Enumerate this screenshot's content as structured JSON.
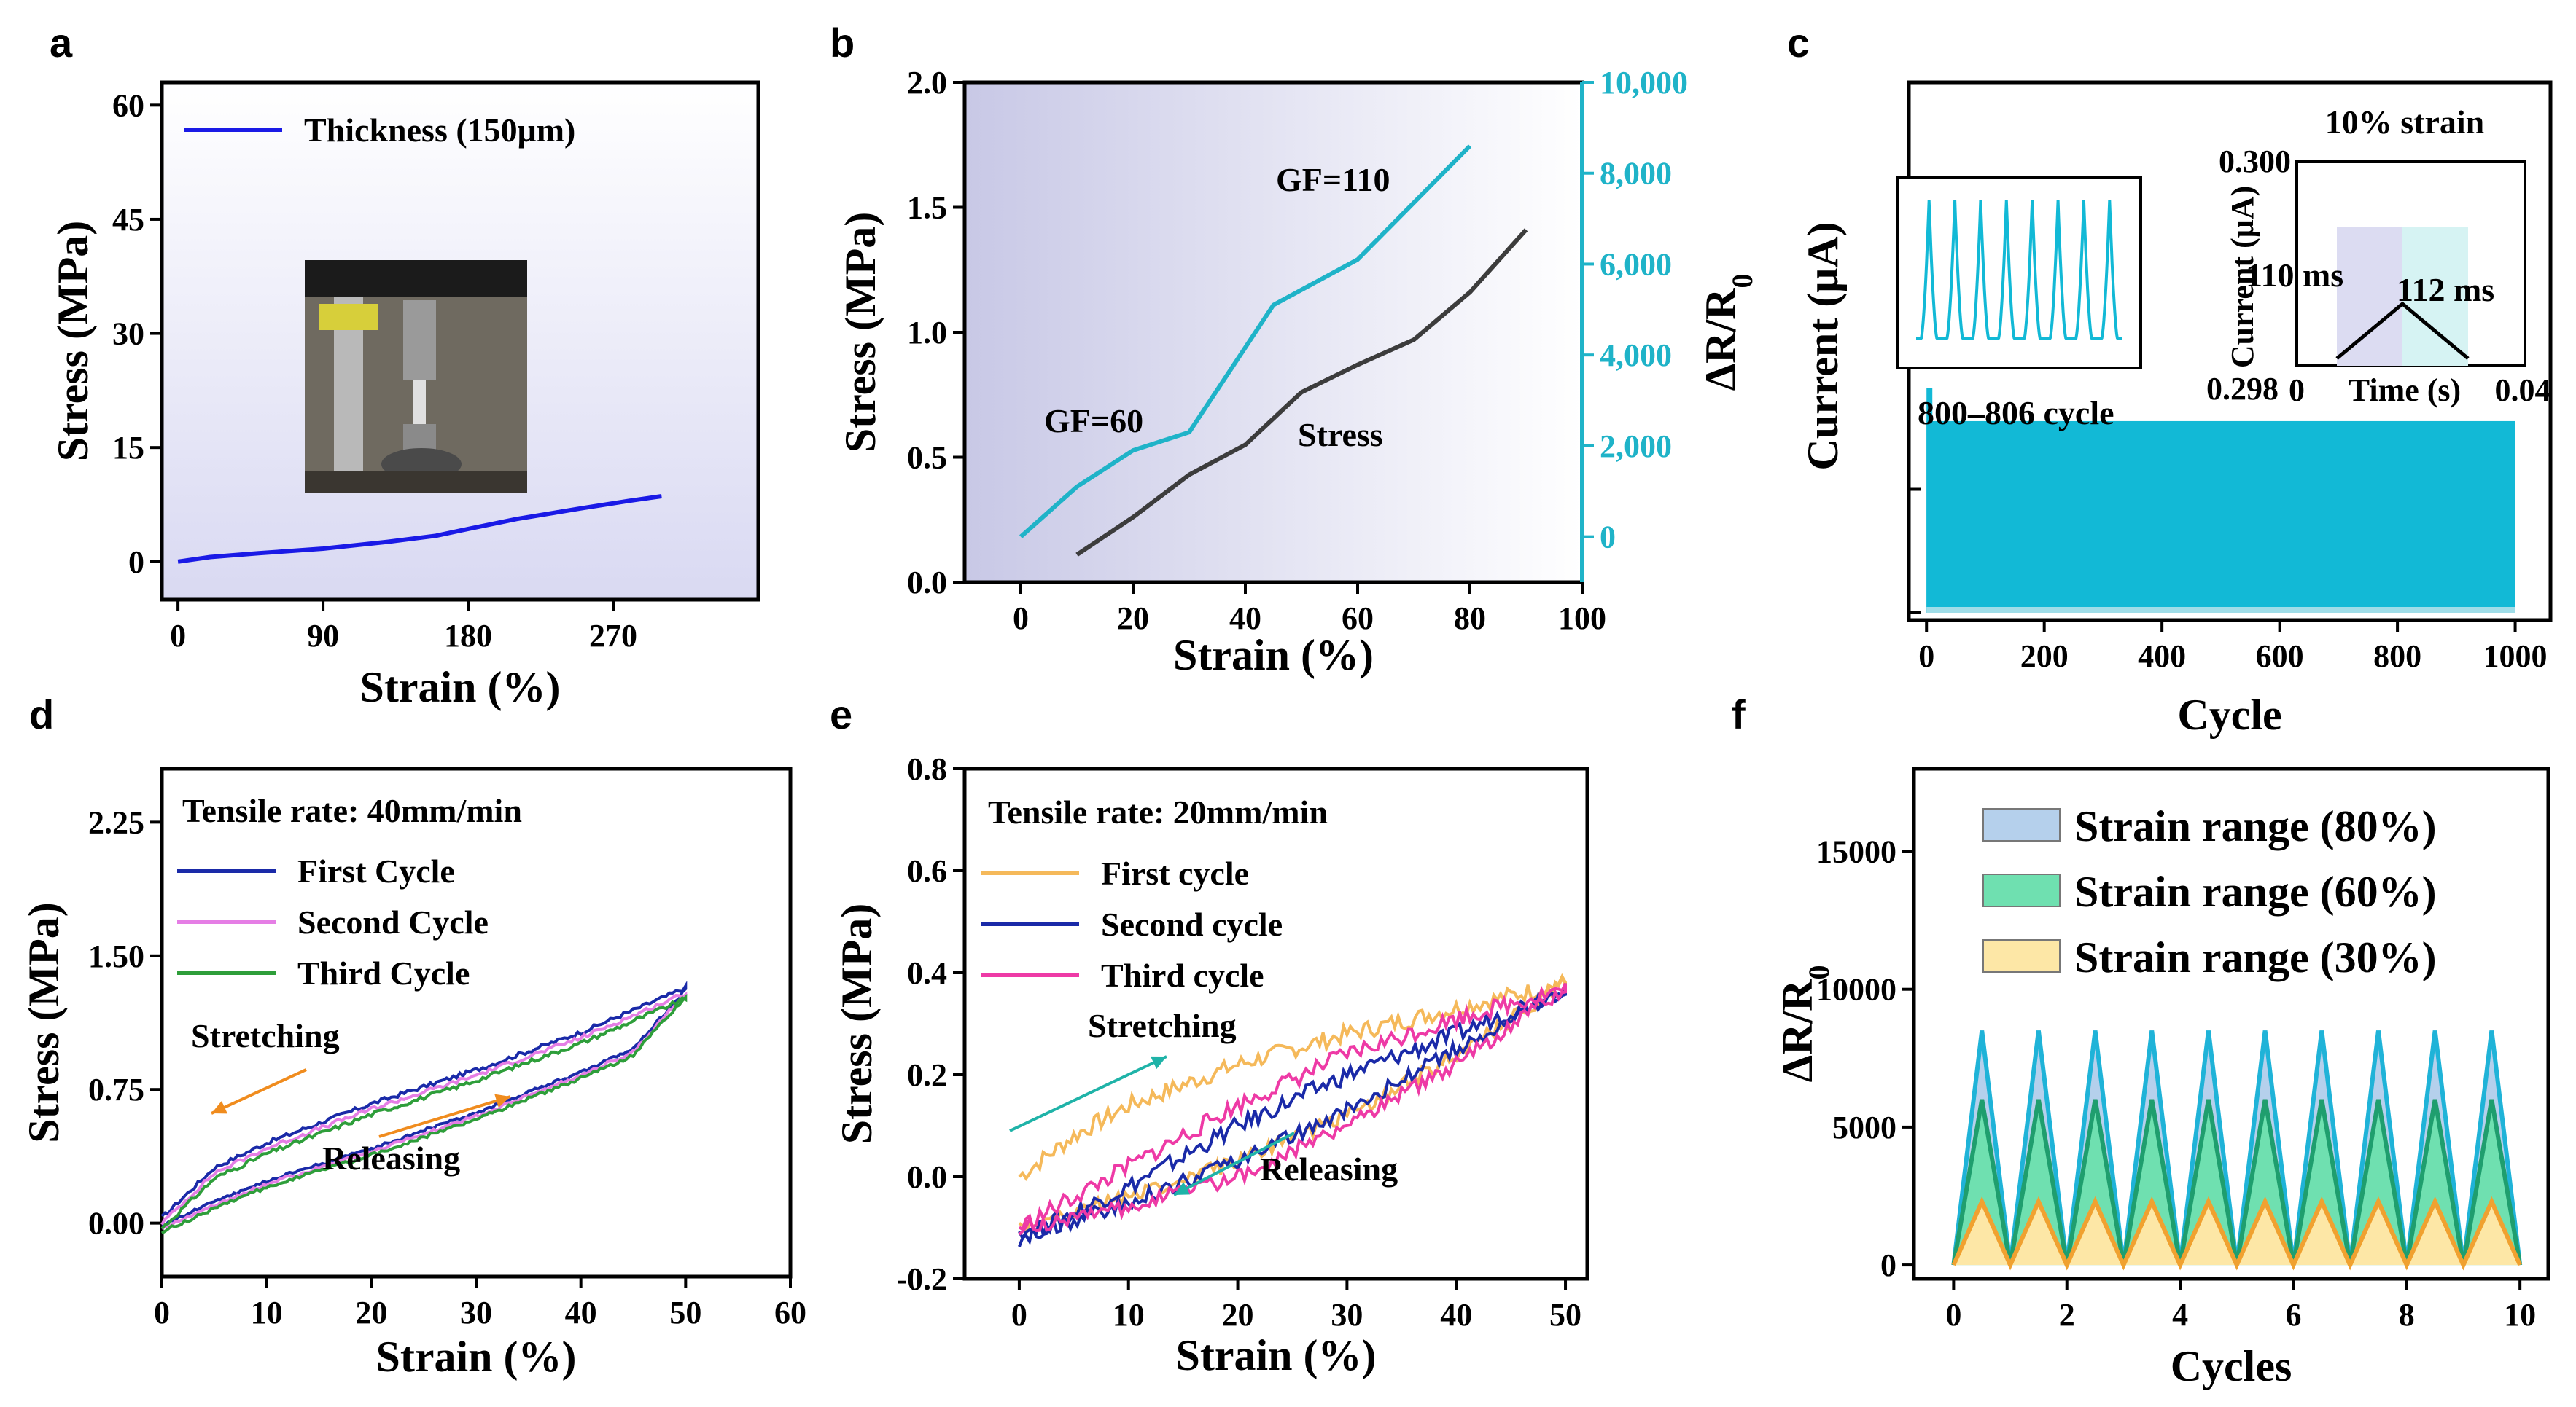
{
  "chart_data": [
    {
      "panel": "a",
      "type": "line",
      "xlabel": "Strain (%)",
      "ylabel": "Stress (MPa)",
      "xlim": [
        -10,
        360
      ],
      "ylim": [
        -5,
        63
      ],
      "xticks": [
        0,
        90,
        180,
        270
      ],
      "yticks": [
        0,
        15,
        30,
        45,
        60
      ],
      "series": [
        {
          "name": "Thickness (150μm)",
          "color": "#1a1ae6",
          "x": [
            0,
            20,
            50,
            90,
            130,
            160,
            180,
            210,
            250,
            280,
            300
          ],
          "y": [
            0,
            0.6,
            1.1,
            1.7,
            2.6,
            3.4,
            4.3,
            5.6,
            7.0,
            8.0,
            8.6
          ]
        }
      ],
      "inset": "photo of tensile tester grips"
    },
    {
      "panel": "b",
      "type": "line",
      "xlabel": "Strain (%)",
      "ylabel": "Stress (MPa)",
      "ylabel_right": "ΔR/R0",
      "xlim": [
        -10,
        100
      ],
      "ylim": [
        0,
        2.0
      ],
      "ylim_right": [
        -1000,
        10000
      ],
      "xticks": [
        0,
        20,
        40,
        60,
        80,
        100
      ],
      "yticks": [
        0.0,
        0.5,
        1.0,
        1.5,
        2.0
      ],
      "yticks_right": [
        "0",
        "2,000",
        "4,000",
        "6,000",
        "8,000",
        "10,000"
      ],
      "series": [
        {
          "name": "Stress",
          "axis": "left",
          "color": "#3c3c3c",
          "x": [
            10,
            20,
            30,
            40,
            50,
            60,
            70,
            80,
            90
          ],
          "y": [
            0.11,
            0.26,
            0.43,
            0.55,
            0.76,
            0.87,
            0.97,
            1.16,
            1.41
          ]
        },
        {
          "name": "ΔR/R0",
          "axis": "right",
          "color": "#1fb3c8",
          "x": [
            0,
            10,
            20,
            30,
            45,
            60,
            80
          ],
          "y": [
            0,
            1100,
            1900,
            2300,
            5100,
            6100,
            8600
          ]
        }
      ],
      "annotations": [
        "GF=60",
        "GF=110",
        "Stress"
      ]
    },
    {
      "panel": "c",
      "type": "area",
      "xlabel": "Cycle",
      "ylabel": "Current (μA)",
      "xlim": [
        -30,
        1060
      ],
      "ylim": [
        0,
        1
      ],
      "xticks": [
        0,
        200,
        400,
        600,
        800,
        1000
      ],
      "series": [
        {
          "name": "Current",
          "color": "#12b9d6",
          "x": [
            0,
            1000
          ],
          "upper": 0.37,
          "lower": 0.0
        }
      ],
      "annotations": [
        "10% strain",
        "800-806 cycle"
      ],
      "inset_cycles_label": "800–806 cycle",
      "inset_zoom": {
        "xlabel": "Time (s)",
        "ylabel": "Current (μA)",
        "yticks": [
          "0.298",
          "0.300"
        ],
        "xticks": [
          "0",
          "0.04"
        ],
        "labels": [
          "110 ms",
          "112 ms"
        ]
      }
    },
    {
      "panel": "d",
      "type": "line",
      "title": "Tensile rate: 40mm/min",
      "xlabel": "Strain (%)",
      "ylabel": "Stress (MPa)",
      "xlim": [
        0,
        60
      ],
      "ylim": [
        -0.3,
        2.55
      ],
      "xticks": [
        0,
        10,
        20,
        30,
        40,
        50,
        60
      ],
      "yticks": [
        "0.00",
        "0.75",
        "1.50",
        "2.25"
      ],
      "series": [
        {
          "name": "First Cycle",
          "color": "#1a2aa8",
          "offset": 0.03
        },
        {
          "name": "Second Cycle",
          "color": "#e57ee5",
          "offset": 0.0
        },
        {
          "name": "Third Cycle",
          "color": "#2e9e3a",
          "offset": -0.03
        }
      ],
      "loop": {
        "x_max": 50,
        "y_max": 1.29,
        "load_x": [
          0,
          5,
          10,
          20,
          30,
          40,
          50
        ],
        "load_y": [
          0.0,
          0.28,
          0.42,
          0.64,
          0.83,
          1.04,
          1.29
        ],
        "unload_x": [
          50,
          45,
          40,
          30,
          20,
          10,
          5,
          0
        ],
        "unload_y": [
          1.29,
          0.96,
          0.83,
          0.6,
          0.4,
          0.22,
          0.1,
          -0.03
        ]
      },
      "annotations": [
        "Stretching",
        "Releasing"
      ]
    },
    {
      "panel": "e",
      "type": "line",
      "title": "Tensile rate: 20mm/min",
      "xlabel": "Strain (%)",
      "ylabel": "Stress (MPa)",
      "xlim": [
        -5,
        52
      ],
      "ylim": [
        -0.2,
        0.8
      ],
      "xticks": [
        0,
        10,
        20,
        30,
        40,
        50
      ],
      "yticks": [
        "-0.2",
        "0.0",
        "0.2",
        "0.4",
        "0.6",
        "0.8"
      ],
      "series": [
        {
          "name": "First cycle",
          "color": "#f5b95a",
          "load_x": [
            0,
            5,
            10,
            20,
            30,
            40,
            50
          ],
          "load_y": [
            0.0,
            0.08,
            0.14,
            0.22,
            0.28,
            0.33,
            0.38
          ],
          "unload_x": [
            50,
            40,
            30,
            20,
            10,
            0
          ],
          "unload_y": [
            0.38,
            0.24,
            0.12,
            0.03,
            -0.04,
            -0.1
          ]
        },
        {
          "name": "Second cycle",
          "color": "#1a2aa8",
          "load_x": [
            0,
            10,
            20,
            30,
            40,
            50
          ],
          "load_y": [
            -0.12,
            -0.02,
            0.1,
            0.2,
            0.28,
            0.37
          ],
          "unload_x": [
            50,
            40,
            30,
            20,
            10,
            0
          ],
          "unload_y": [
            0.37,
            0.25,
            0.13,
            0.03,
            -0.05,
            -0.12
          ]
        },
        {
          "name": "Third cycle",
          "color": "#ee3aa6",
          "load_x": [
            0,
            10,
            20,
            30,
            40,
            50
          ],
          "load_y": [
            -0.1,
            0.02,
            0.14,
            0.24,
            0.31,
            0.37
          ],
          "unload_x": [
            50,
            40,
            30,
            20,
            10,
            0
          ],
          "unload_y": [
            0.37,
            0.22,
            0.1,
            0.0,
            -0.06,
            -0.1
          ]
        }
      ],
      "annotations": [
        "Stretching",
        "Releasing"
      ]
    },
    {
      "panel": "f",
      "type": "area",
      "xlabel": "Cycles",
      "ylabel": "ΔR/R0",
      "xlim": [
        -0.7,
        10.5
      ],
      "ylim": [
        -500,
        18000
      ],
      "xticks": [
        0,
        2,
        4,
        6,
        8,
        10
      ],
      "yticks": [
        0,
        5000,
        10000,
        15000
      ],
      "series": [
        {
          "name": "Strain range (80%)",
          "peak": 8500,
          "fill": "#b5d0ec",
          "line": "#1fb3d8"
        },
        {
          "name": "Strain range (60%)",
          "peak": 6000,
          "fill": "#6fe0b0",
          "line": "#1f9e6e"
        },
        {
          "name": "Strain range (30%)",
          "peak": 2300,
          "fill": "#fde7a6",
          "line": "#f0a130"
        }
      ],
      "cycles": 10
    }
  ]
}
